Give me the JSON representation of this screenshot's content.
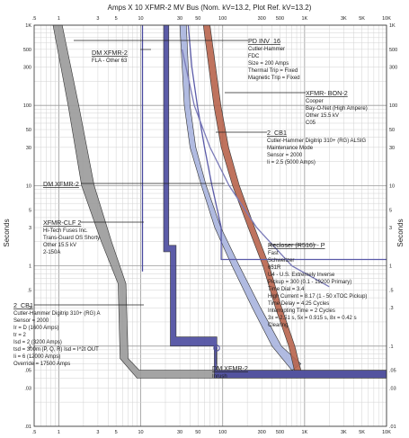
{
  "chart_data": {
    "type": "line",
    "title": "Amps  X  10   XFMR-2 MV Bus (Nom. kV=13.2, Plot Ref. kV=13.2)",
    "xlabel": "Amps X 10",
    "ylabel": "Seconds",
    "xscale": "log",
    "yscale": "log",
    "xlim": [
      0.5,
      10000
    ],
    "ylim": [
      0.01,
      1000
    ],
    "grid": true,
    "x_ticks": [
      ".5",
      "1",
      "3",
      "5",
      "10",
      "30",
      "50",
      "100",
      "300",
      "500",
      "1K",
      "3K",
      "5K",
      "10K"
    ],
    "x_tick_values": [
      0.5,
      1,
      3,
      5,
      10,
      30,
      50,
      100,
      300,
      500,
      1000,
      3000,
      5000,
      10000
    ],
    "y_ticks": [
      "1K",
      "500",
      "300",
      "100",
      "50",
      "30",
      "10",
      "5",
      "3",
      "1",
      ".5",
      ".3",
      ".1",
      ".05",
      ".03",
      ".01"
    ],
    "y_tick_values": [
      1000,
      500,
      300,
      100,
      50,
      30,
      10,
      5,
      3,
      1,
      0.5,
      0.3,
      0.1,
      0.05,
      0.03,
      0.01
    ],
    "series": [
      {
        "name": "XFMR-CLF 2",
        "color": "#9a9a9a",
        "style": "band",
        "upper": [
          [
            0.85,
            1000
          ],
          [
            1.3,
            100
          ],
          [
            1.9,
            10
          ],
          [
            3.3,
            2
          ],
          [
            5.3,
            0.6
          ],
          [
            5.6,
            0.07
          ],
          [
            9,
            0.04
          ],
          [
            10000,
            0.04
          ]
        ],
        "lower": [
          [
            1.1,
            1000
          ],
          [
            1.75,
            100
          ],
          [
            2.7,
            10
          ],
          [
            4.4,
            2
          ],
          [
            6.6,
            0.6
          ],
          [
            7,
            0.07
          ],
          [
            9.6,
            0.05
          ],
          [
            10000,
            0.05
          ]
        ]
      },
      {
        "name": "DM XFMR-2 FLA - Other 63",
        "color": "#4a4aa0",
        "style": "line",
        "points": [
          [
            10.5,
            1000
          ],
          [
            10.5,
            0.85
          ]
        ]
      },
      {
        "name": "2_CB1",
        "color": "#4a4a9e",
        "style": "band",
        "upper": [
          [
            19,
            1000
          ],
          [
            19,
            1.5
          ],
          [
            23,
            1.5
          ],
          [
            23,
            0.1
          ],
          [
            79,
            0.1
          ],
          [
            79,
            0.04
          ],
          [
            10000,
            0.04
          ]
        ],
        "lower": [
          [
            22,
            1000
          ],
          [
            22,
            1.8
          ],
          [
            27,
            1.8
          ],
          [
            27,
            0.13
          ],
          [
            85,
            0.13
          ],
          [
            85,
            0.05
          ],
          [
            10000,
            0.05
          ]
        ]
      },
      {
        "name": "Recloser (R516) - P Fast",
        "color": "#a9b4de",
        "style": "band",
        "upper": [
          [
            30,
            1000
          ],
          [
            34,
            100
          ],
          [
            40,
            30
          ],
          [
            55,
            10
          ],
          [
            80,
            3
          ],
          [
            130,
            1
          ],
          [
            230,
            0.3
          ],
          [
            400,
            0.1
          ],
          [
            700,
            0.05
          ]
        ],
        "lower": [
          [
            36,
            1000
          ],
          [
            40,
            100
          ],
          [
            47,
            30
          ],
          [
            63,
            10
          ],
          [
            95,
            3
          ],
          [
            160,
            1
          ],
          [
            290,
            0.3
          ],
          [
            520,
            0.1
          ],
          [
            900,
            0.06
          ]
        ]
      },
      {
        "name": "XFMR- BON-2",
        "color": "#b8644c",
        "style": "band",
        "upper": [
          [
            58,
            1000
          ],
          [
            78,
            100
          ],
          [
            96,
            30
          ],
          [
            132,
            10
          ],
          [
            205,
            3
          ],
          [
            310,
            1
          ],
          [
            440,
            0.3
          ],
          [
            640,
            0.1
          ],
          [
            750,
            0.05
          ]
        ],
        "lower": [
          [
            70,
            1000
          ],
          [
            95,
            100
          ],
          [
            118,
            30
          ],
          [
            160,
            10
          ],
          [
            245,
            3
          ],
          [
            370,
            1
          ],
          [
            525,
            0.3
          ],
          [
            760,
            0.1
          ],
          [
            900,
            0.05
          ]
        ]
      },
      {
        "name": "PD INV_16",
        "color": "#5a5aa8",
        "style": "line",
        "points": [
          [
            38,
            1000
          ],
          [
            42,
            300
          ],
          [
            49,
            100
          ],
          [
            60,
            30
          ],
          [
            74,
            10
          ],
          [
            96,
            3
          ],
          [
            96,
            1.2
          ],
          [
            10000,
            1.2
          ]
        ]
      },
      {
        "name": "Recloser (R516) - P Fast (slow curve)",
        "color": "#7a7ab8",
        "style": "line",
        "points": [
          [
            32,
            500
          ],
          [
            45,
            100
          ],
          [
            70,
            30
          ],
          [
            120,
            10
          ],
          [
            260,
            3
          ],
          [
            700,
            1
          ],
          [
            2000,
            0.55
          ]
        ]
      }
    ],
    "annotations": [
      {
        "label": "PD INV_16",
        "details": [
          "Cutler-Hammer",
          "FDC",
          "Size = 200 Amps",
          "Thermal Trip = Fixed",
          "Magnetic Trip = Fixed"
        ]
      },
      {
        "label": "DM XFMR-2",
        "details": [
          "FLA - Other 63"
        ]
      },
      {
        "label": "XFMR- BON-2",
        "details": [
          "Cooper",
          "Bay-O-Net (High Ampere)",
          "Other 15.5 kV",
          "C05"
        ]
      },
      {
        "label": "2_CB1",
        "details": [
          "Cutler-Hammer Digitrip 310+ (RG) ALSIG",
          "Maintenance Mode",
          "Sensor = 2000",
          "Ii = 2.5 (5000 Amps)"
        ]
      },
      {
        "label": "DM XFMR-2",
        "details": []
      },
      {
        "label": "XFMR-CLF 2",
        "details": [
          "Hi-Tech Fuses Inc.",
          "Trans-Guard OS Shorty",
          "Other 15.5 kV",
          "2-150A"
        ]
      },
      {
        "label": "Recloser (R516) - P",
        "details": [
          "Fast",
          "Schweitzer",
          "651R",
          "U4 - U.S. Extremely Inverse",
          "Pickup = 300 (0.1 - 19200 Primary)",
          "Time Dial = 3.4",
          "High Current = 8.17 (1 - 50 xTOC Pickup)",
          "Time Delay = 4.25 Cycles",
          "Interrupting Time = 2 Cycles",
          "3x = 2.51 s, 5x = 0.915 s, 8x = 0.42 s",
          "Clearing"
        ]
      },
      {
        "label": "2_CB1",
        "details": [
          "Cutler-Hammer Digitrip 310+ (RG) A",
          "Sensor = 2000",
          "Ir = D (1600 Amps)",
          "tr = 2",
          "Isd = 2 (3200 Amps)",
          "tsd = 300m (P, Q, R)  Isd = I^2t OUT",
          "Ii = 6 (12000 Amps)",
          "Override = 17500 Amps"
        ]
      },
      {
        "label": "DM XFMR-2",
        "details": [
          "Inrush"
        ]
      }
    ]
  }
}
